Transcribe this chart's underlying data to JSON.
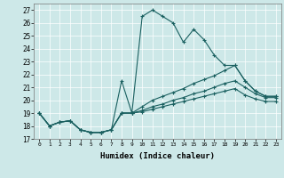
{
  "xlabel": "Humidex (Indice chaleur)",
  "xlim": [
    -0.5,
    23.5
  ],
  "ylim": [
    17,
    27.5
  ],
  "yticks": [
    17,
    18,
    19,
    20,
    21,
    22,
    23,
    24,
    25,
    26,
    27
  ],
  "xticks": [
    0,
    1,
    2,
    3,
    4,
    5,
    6,
    7,
    8,
    9,
    10,
    11,
    12,
    13,
    14,
    15,
    16,
    17,
    18,
    19,
    20,
    21,
    22,
    23
  ],
  "background_color": "#cde8e8",
  "line_color": "#1a6060",
  "grid_color": "#ffffff",
  "lines": [
    {
      "x": [
        0,
        1,
        2,
        3,
        4,
        5,
        6,
        7,
        8,
        9,
        10,
        11,
        12,
        13,
        14,
        15,
        16,
        17,
        18,
        19,
        20,
        21,
        22,
        23
      ],
      "y": [
        19,
        18,
        18.3,
        18.4,
        17.7,
        17.5,
        17.5,
        17.7,
        21.5,
        19.0,
        26.5,
        27.0,
        26.5,
        26.0,
        24.5,
        25.5,
        24.7,
        23.5,
        22.7,
        22.7,
        21.5,
        20.7,
        20.3,
        20.3
      ]
    },
    {
      "x": [
        0,
        1,
        2,
        3,
        4,
        5,
        6,
        7,
        8,
        9,
        10,
        11,
        12,
        13,
        14,
        15,
        16,
        17,
        18,
        19,
        20,
        21,
        22,
        23
      ],
      "y": [
        19,
        18,
        18.3,
        18.4,
        17.7,
        17.5,
        17.5,
        17.7,
        19.0,
        19.0,
        19.5,
        20.0,
        20.3,
        20.6,
        20.9,
        21.3,
        21.6,
        21.9,
        22.3,
        22.7,
        21.5,
        20.7,
        20.3,
        20.3
      ]
    },
    {
      "x": [
        0,
        1,
        2,
        3,
        4,
        5,
        6,
        7,
        8,
        9,
        10,
        11,
        12,
        13,
        14,
        15,
        16,
        17,
        18,
        19,
        20,
        21,
        22,
        23
      ],
      "y": [
        19,
        18,
        18.3,
        18.4,
        17.7,
        17.5,
        17.5,
        17.7,
        19.0,
        19.0,
        19.2,
        19.5,
        19.7,
        20.0,
        20.2,
        20.5,
        20.7,
        21.0,
        21.3,
        21.5,
        21.0,
        20.5,
        20.2,
        20.2
      ]
    },
    {
      "x": [
        0,
        1,
        2,
        3,
        4,
        5,
        6,
        7,
        8,
        9,
        10,
        11,
        12,
        13,
        14,
        15,
        16,
        17,
        18,
        19,
        20,
        21,
        22,
        23
      ],
      "y": [
        19,
        18,
        18.3,
        18.4,
        17.7,
        17.5,
        17.5,
        17.7,
        19.0,
        19.0,
        19.1,
        19.3,
        19.5,
        19.7,
        19.9,
        20.1,
        20.3,
        20.5,
        20.7,
        20.9,
        20.4,
        20.1,
        19.9,
        19.9
      ]
    }
  ]
}
